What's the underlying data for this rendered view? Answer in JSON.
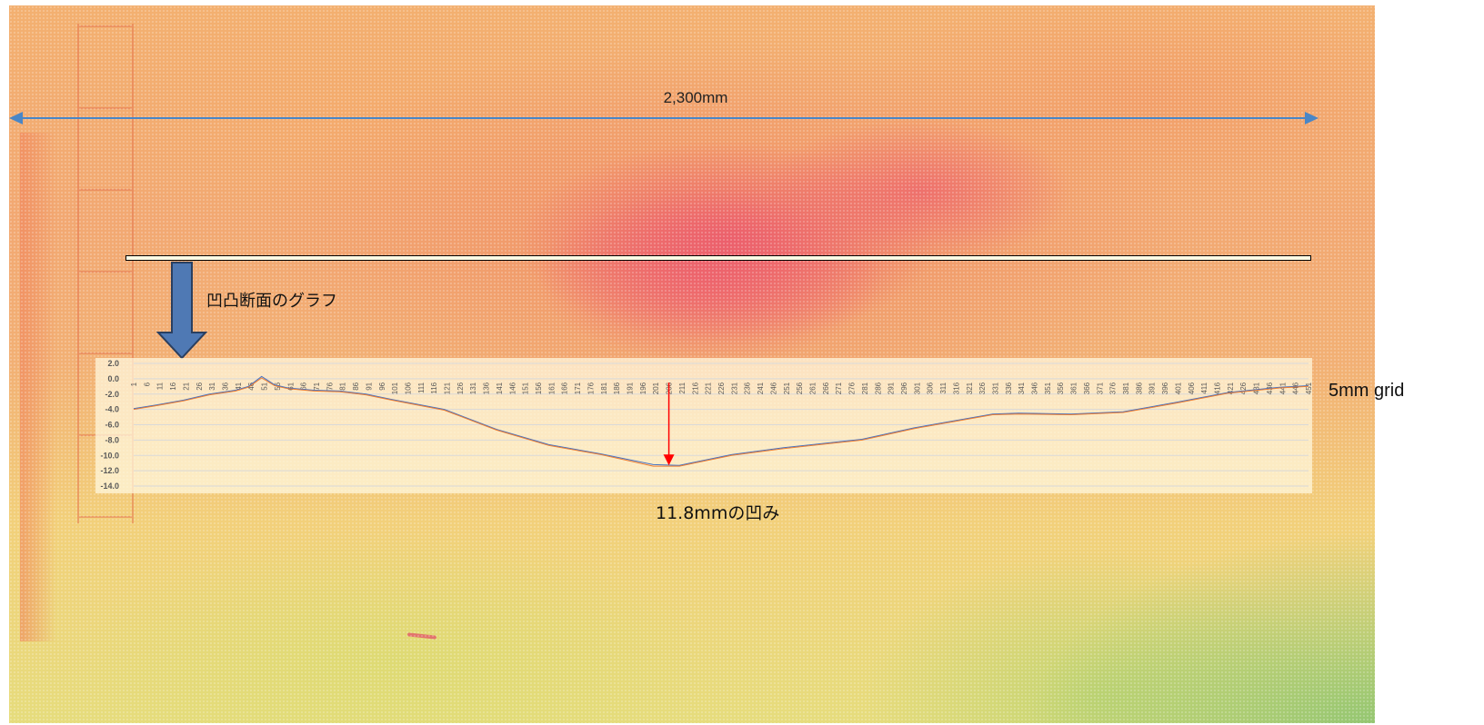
{
  "annotations": {
    "width": "2,300mm",
    "arrow_text": "凹凸断面のグラフ",
    "grid": "5mm grid",
    "dent": "11.8mmの凹み"
  },
  "colors": {
    "heat_high": "#ec5e6c",
    "heat_mid": "#f2a872",
    "heat_low": "#8cc470",
    "dimension_arrow": "#4a86c6",
    "down_arrow_fill": "#4f79b4",
    "down_arrow_border": "#2a3f60",
    "marker_arrow": "#ff0000",
    "series_a": "#4472c4",
    "series_b": "#ed7d31"
  },
  "chart_data": {
    "type": "line",
    "title": "",
    "xlabel": "",
    "ylabel": "",
    "ylim": [
      -14.0,
      2.0
    ],
    "y_ticks": [
      "2.0",
      "0.0",
      "-2.0",
      "-4.0",
      "-6.0",
      "-8.0",
      "-10.0",
      "-12.0",
      "-14.0"
    ],
    "x_range": [
      1,
      451
    ],
    "x_tick_start": 1,
    "x_tick_step": 5,
    "grid": true,
    "series": [
      {
        "x": [
          1,
          10,
          20,
          30,
          40,
          45,
          50,
          55,
          60,
          70,
          80,
          90,
          100,
          120,
          140,
          160,
          180,
          200,
          210,
          230,
          250,
          280,
          300,
          330,
          340,
          360,
          380,
          400,
          420,
          440,
          451
        ],
        "y": [
          -3.9,
          -3.4,
          -2.8,
          -2.0,
          -1.5,
          -1.0,
          0.3,
          -0.8,
          -1.2,
          -1.5,
          -1.6,
          -2.0,
          -2.7,
          -4.0,
          -6.6,
          -8.6,
          -9.8,
          -11.2,
          -11.3,
          -9.9,
          -9.0,
          -7.9,
          -6.4,
          -4.6,
          -4.5,
          -4.6,
          -4.3,
          -3.1,
          -1.8,
          -1.1,
          -0.9
        ]
      },
      {
        "x": [
          1,
          10,
          20,
          30,
          40,
          45,
          50,
          55,
          60,
          70,
          80,
          90,
          100,
          120,
          140,
          160,
          180,
          200,
          210,
          230,
          250,
          280,
          300,
          330,
          340,
          360,
          380,
          400,
          420,
          440,
          451
        ],
        "y": [
          -4.0,
          -3.5,
          -2.9,
          -2.1,
          -1.6,
          -1.1,
          0.1,
          -0.9,
          -1.3,
          -1.6,
          -1.7,
          -2.1,
          -2.8,
          -4.1,
          -6.7,
          -8.7,
          -9.9,
          -11.4,
          -11.4,
          -10.0,
          -9.1,
          -8.0,
          -6.5,
          -4.7,
          -4.6,
          -4.7,
          -4.4,
          -3.2,
          -1.9,
          -1.2,
          -1.0
        ]
      }
    ],
    "marker": {
      "x": 206,
      "y_from": -0.5,
      "y_to": -11.3
    }
  }
}
